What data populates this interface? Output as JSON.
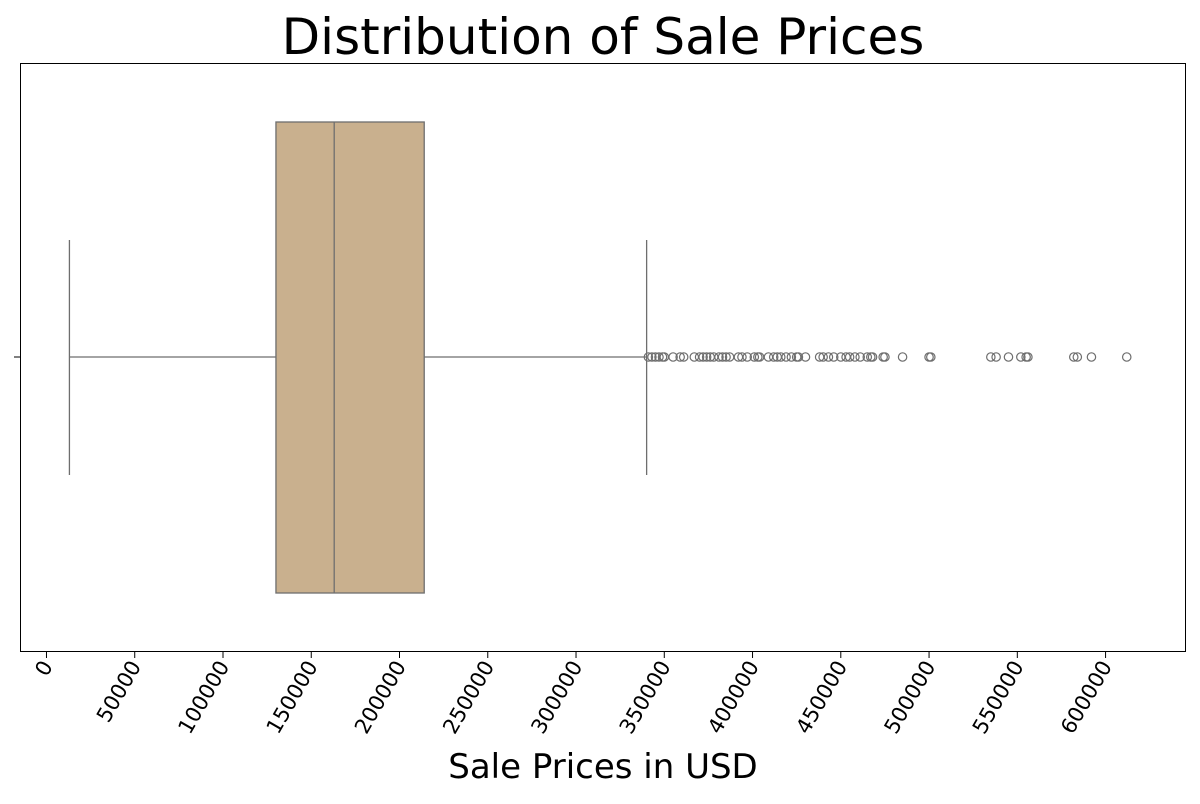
{
  "chart_data": {
    "type": "boxplot",
    "orientation": "horizontal",
    "title": "Distribution of Sale Prices",
    "xlabel": "Sale Prices in USD",
    "ylabel": "",
    "xlim": [
      -15000,
      645000
    ],
    "xticks": [
      0,
      50000,
      100000,
      150000,
      200000,
      250000,
      300000,
      350000,
      400000,
      450000,
      500000,
      550000,
      600000
    ],
    "xtick_labels": [
      "0",
      "50000",
      "100000",
      "150000",
      "200000",
      "250000",
      "300000",
      "350000",
      "400000",
      "450000",
      "500000",
      "550000",
      "600000"
    ],
    "grid": false,
    "legend": null,
    "box": {
      "whisker_low": 13000,
      "q1": 130000,
      "median": 163000,
      "q3": 214000,
      "whisker_high": 340000
    },
    "outliers": [
      341000,
      343000,
      345000,
      347000,
      349000,
      350000,
      355000,
      359000,
      361000,
      367000,
      370000,
      372000,
      374000,
      376000,
      378000,
      381000,
      383000,
      385000,
      387000,
      392000,
      394000,
      397000,
      401000,
      403000,
      404000,
      409000,
      412000,
      414000,
      416000,
      419000,
      422000,
      425000,
      426000,
      430000,
      438000,
      440000,
      443000,
      446000,
      450000,
      453000,
      455000,
      458000,
      461000,
      465000,
      467000,
      468000,
      474000,
      475000,
      485000,
      500000,
      501000,
      535000,
      538000,
      545000,
      552000,
      555000,
      556000,
      582000,
      584000,
      592000,
      612000
    ],
    "colors": {
      "box_fill": "#c9b08e",
      "line": "#6e6e6e",
      "axes": "#000000"
    }
  }
}
